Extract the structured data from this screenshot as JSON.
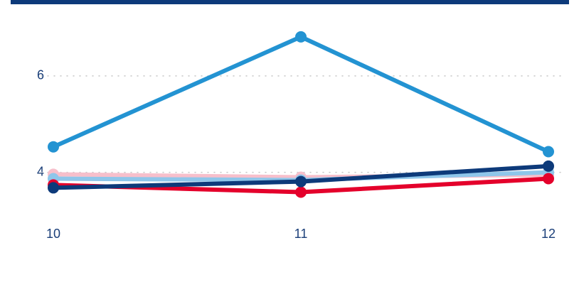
{
  "chart_data": {
    "type": "line",
    "x": [
      10,
      11,
      12
    ],
    "series": [
      {
        "color": "#f7bfcb",
        "values": [
          3.96,
          3.9,
          3.95
        ]
      },
      {
        "color": "#8ec6ea",
        "values": [
          3.87,
          3.84,
          4.0
        ]
      },
      {
        "color": "#e4002b",
        "values": [
          3.74,
          3.59,
          3.87
        ]
      },
      {
        "color": "#0d3a7a",
        "values": [
          3.68,
          3.81,
          4.13
        ]
      },
      {
        "color": "#2393d2",
        "values": [
          4.53,
          6.81,
          4.43
        ]
      }
    ],
    "xlim": [
      10,
      12
    ],
    "xticks": [
      10,
      11,
      12
    ],
    "ylim": [
      3.2,
      7
    ],
    "yticks": [
      4,
      6
    ],
    "grid": true
  }
}
